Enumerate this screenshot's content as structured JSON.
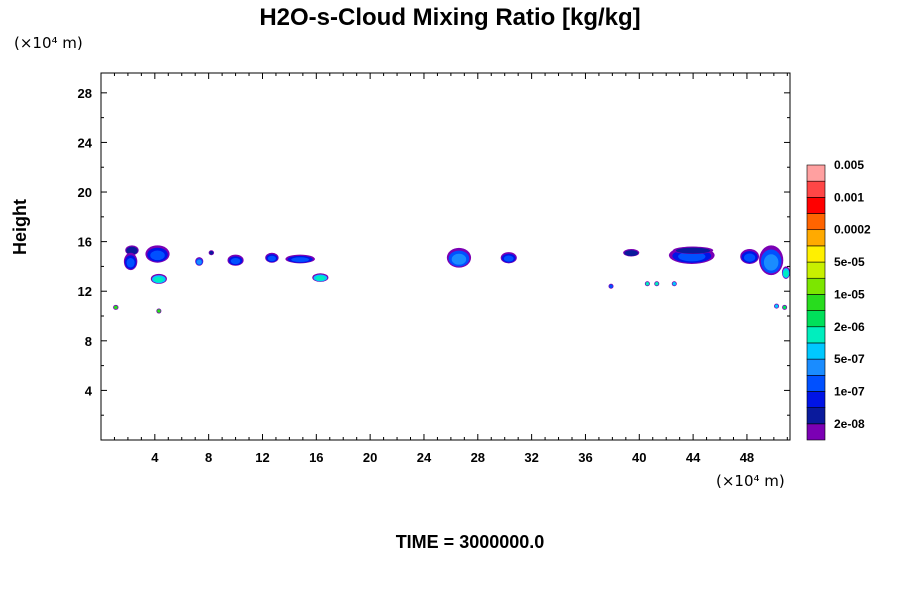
{
  "chart_data": {
    "type": "heatmap",
    "title": "H2O-s-Cloud Mixing Ratio [kg/kg]",
    "ylabel": "Height",
    "x_unit": "(×10⁴ m)",
    "y_unit": "(×10⁴ m)",
    "footer": "TIME = 3000000.0",
    "xlim": [
      0,
      51.2
    ],
    "ylim": [
      0,
      29.6
    ],
    "x_ticks": [
      "4",
      "8",
      "12",
      "16",
      "20",
      "24",
      "28",
      "32",
      "36",
      "40",
      "44",
      "48"
    ],
    "y_ticks": [
      "4",
      "8",
      "12",
      "16",
      "20",
      "24",
      "28"
    ],
    "colorbar": {
      "colors": [
        "#7b00b4",
        "#0a1a9c",
        "#0014e6",
        "#0050ff",
        "#1a8cff",
        "#00c8ff",
        "#00eebe",
        "#00e05a",
        "#28dc1e",
        "#7ce600",
        "#c8f000",
        "#fff000",
        "#ffaa00",
        "#ff6400",
        "#ff0000",
        "#ff4646",
        "#ffa0a0"
      ],
      "labels": [
        "2e-08",
        "1e-07",
        "5e-07",
        "2e-06",
        "1e-05",
        "5e-05",
        "0.0002",
        "0.001",
        "0.005"
      ]
    },
    "cloud_patches": [
      {
        "x": 2.3,
        "y": 15.3,
        "rx": 0.5,
        "ry": 0.4,
        "level": 1
      },
      {
        "x": 2.2,
        "y": 14.4,
        "rx": 0.5,
        "ry": 0.7,
        "level": 3
      },
      {
        "x": 4.2,
        "y": 15.0,
        "rx": 0.9,
        "ry": 0.7,
        "level": 3
      },
      {
        "x": 4.3,
        "y": 13.0,
        "rx": 0.6,
        "ry": 0.4,
        "level": 6
      },
      {
        "x": 1.1,
        "y": 10.7,
        "rx": 0.2,
        "ry": 0.2,
        "level": 8
      },
      {
        "x": 4.3,
        "y": 10.4,
        "rx": 0.15,
        "ry": 0.15,
        "level": 8
      },
      {
        "x": 7.3,
        "y": 14.4,
        "rx": 0.3,
        "ry": 0.35,
        "level": 4
      },
      {
        "x": 8.2,
        "y": 15.1,
        "rx": 0.2,
        "ry": 0.2,
        "level": 1
      },
      {
        "x": 10.0,
        "y": 14.5,
        "rx": 0.6,
        "ry": 0.45,
        "level": 3
      },
      {
        "x": 12.7,
        "y": 14.7,
        "rx": 0.5,
        "ry": 0.4,
        "level": 3
      },
      {
        "x": 14.8,
        "y": 14.6,
        "rx": 1.1,
        "ry": 0.35,
        "level": 3
      },
      {
        "x": 16.3,
        "y": 13.1,
        "rx": 0.6,
        "ry": 0.35,
        "level": 6
      },
      {
        "x": 26.6,
        "y": 14.7,
        "rx": 0.9,
        "ry": 0.8,
        "level": 4
      },
      {
        "x": 30.3,
        "y": 14.7,
        "rx": 0.6,
        "ry": 0.45,
        "level": 3
      },
      {
        "x": 37.9,
        "y": 12.4,
        "rx": 0.12,
        "ry": 0.12,
        "level": 3
      },
      {
        "x": 39.4,
        "y": 15.1,
        "rx": 0.6,
        "ry": 0.3,
        "level": 1
      },
      {
        "x": 40.6,
        "y": 12.6,
        "rx": 0.12,
        "ry": 0.12,
        "level": 6
      },
      {
        "x": 41.3,
        "y": 12.6,
        "rx": 0.12,
        "ry": 0.12,
        "level": 6
      },
      {
        "x": 42.6,
        "y": 12.6,
        "rx": 0.12,
        "ry": 0.12,
        "level": 5
      },
      {
        "x": 43.9,
        "y": 14.9,
        "rx": 1.7,
        "ry": 0.7,
        "level": 3
      },
      {
        "x": 44.0,
        "y": 15.3,
        "rx": 1.5,
        "ry": 0.3,
        "level": 1
      },
      {
        "x": 48.2,
        "y": 14.8,
        "rx": 0.7,
        "ry": 0.6,
        "level": 3
      },
      {
        "x": 49.8,
        "y": 14.5,
        "rx": 0.9,
        "ry": 1.2,
        "level": 4
      },
      {
        "x": 50.9,
        "y": 13.5,
        "rx": 0.3,
        "ry": 0.5,
        "level": 6
      },
      {
        "x": 50.2,
        "y": 10.8,
        "rx": 0.12,
        "ry": 0.12,
        "level": 5
      },
      {
        "x": 50.8,
        "y": 10.7,
        "rx": 0.12,
        "ry": 0.12,
        "level": 7
      }
    ]
  }
}
